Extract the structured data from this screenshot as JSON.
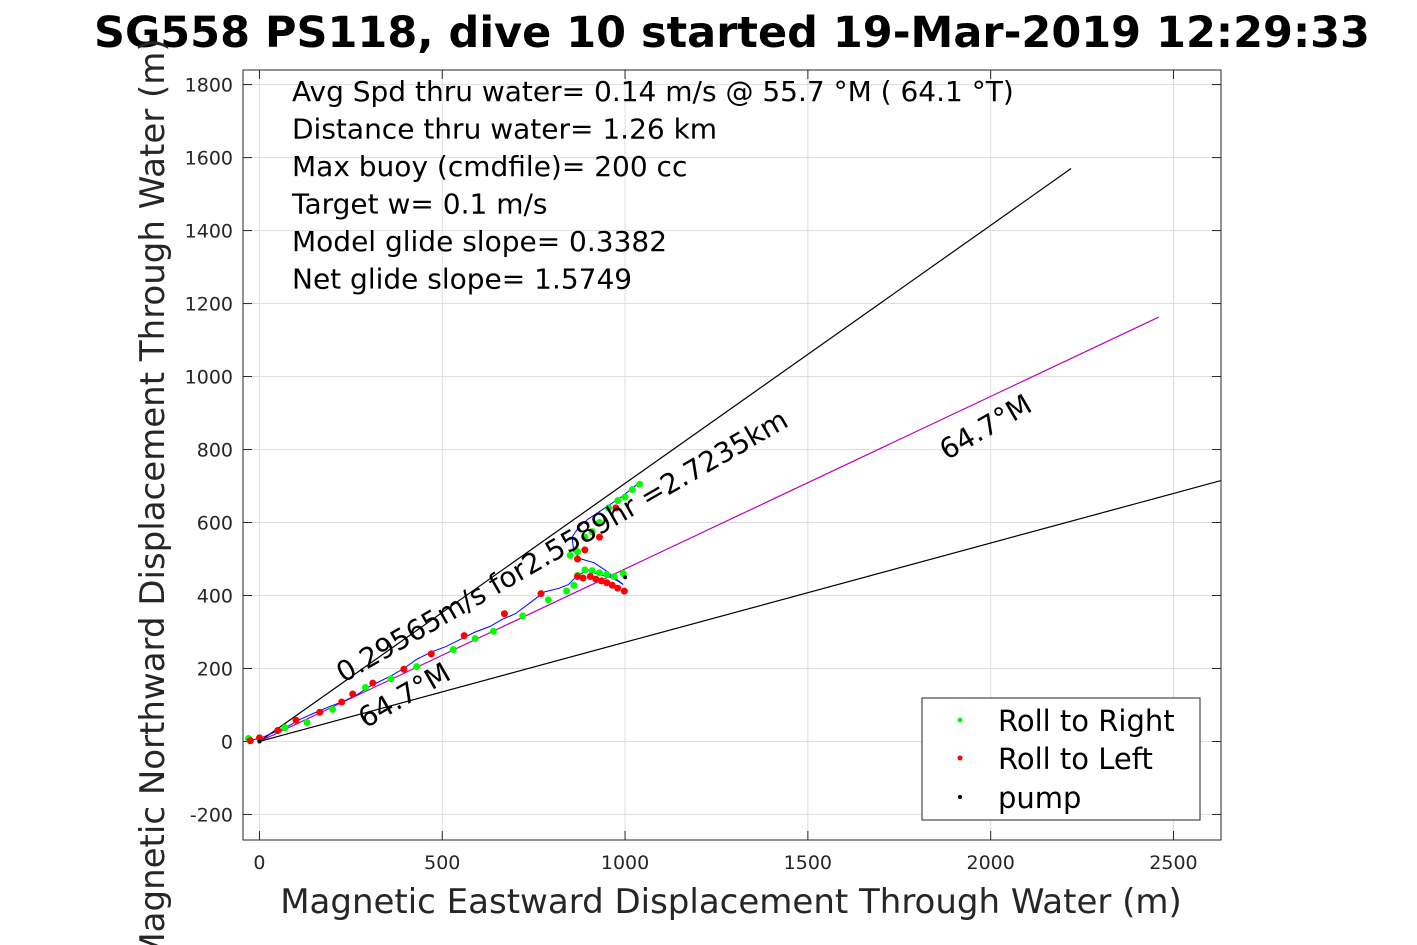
{
  "chart_data": {
    "type": "line",
    "title": "SG558 PS118, dive 10 started 19-Mar-2019 12:29:33",
    "xlabel": "Magnetic Eastward Displacement Through Water (m)",
    "ylabel": "Magnetic Northward Displacement Through Water (m)",
    "xlim": [
      -45,
      2630
    ],
    "ylim": [
      -270,
      1840
    ],
    "xticks": [
      0,
      500,
      1000,
      1500,
      2000,
      2500
    ],
    "yticks": [
      -200,
      0,
      200,
      400,
      600,
      800,
      1000,
      1200,
      1400,
      1600,
      1800
    ],
    "grid": true,
    "stats": [
      "Avg Spd thru water=  0.14 m/s @  55.7 °M ( 64.1 °T)",
      "Distance thru water=  1.26 km",
      "Max buoy (cmdfile)= 200 cc",
      "Target w= 0.1 m/s",
      "Model glide slope= 0.3382",
      "Net glide slope= 1.5749"
    ],
    "annotations": [
      {
        "text": "0.29565m/s for2.5589hr =2.7235km",
        "x": 230,
        "y": 160,
        "angle_deg": 30
      },
      {
        "text": "64.7°M",
        "x": 1880,
        "y": 770,
        "angle_deg": 30
      },
      {
        "text": "64.7°M",
        "x": 290,
        "y": 35,
        "angle_deg": 30
      }
    ],
    "series": [
      {
        "name": "Roll to Right",
        "color": "#00ff00"
      },
      {
        "name": "Roll to Left",
        "color": "#ff0000"
      },
      {
        "name": "pump",
        "color": "#000000"
      }
    ],
    "reference_lines": [
      {
        "color": "#000000",
        "x": [
          0,
          2220
        ],
        "y": [
          0,
          1570
        ]
      },
      {
        "color": "#bf00bf",
        "x": [
          0,
          2460
        ],
        "y": [
          0,
          1163
        ]
      },
      {
        "color": "#000000",
        "x": [
          0,
          2630
        ],
        "y": [
          0,
          715
        ]
      }
    ],
    "track": {
      "color": "#0000ff",
      "x": [
        -35,
        -15,
        10,
        40,
        75,
        110,
        150,
        190,
        230,
        270,
        300,
        330,
        360,
        395,
        430,
        470,
        510,
        550,
        590,
        630,
        665,
        700,
        740,
        780,
        820,
        845,
        860,
        880,
        900,
        920,
        940,
        960,
        980,
        995,
        970,
        945,
        915,
        880,
        860,
        855,
        875,
        900,
        930,
        960,
        990,
        1015,
        1040
      ],
      "y": [
        0,
        5,
        12,
        25,
        40,
        60,
        78,
        95,
        110,
        130,
        150,
        165,
        180,
        200,
        225,
        245,
        260,
        280,
        300,
        315,
        335,
        350,
        380,
        410,
        420,
        430,
        445,
        460,
        470,
        460,
        455,
        450,
        440,
        430,
        450,
        470,
        490,
        500,
        520,
        560,
        590,
        610,
        630,
        650,
        670,
        690,
        710
      ]
    },
    "roll_right": {
      "x": [
        -30,
        70,
        130,
        200,
        290,
        360,
        430,
        530,
        590,
        640,
        720,
        790,
        840,
        860,
        870,
        890,
        910,
        930,
        950,
        970,
        995,
        850,
        870,
        890,
        910,
        930,
        955,
        980,
        1000,
        1020,
        1040
      ],
      "y": [
        8,
        38,
        52,
        88,
        148,
        172,
        205,
        252,
        282,
        302,
        344,
        388,
        412,
        428,
        455,
        470,
        468,
        462,
        458,
        452,
        460,
        510,
        520,
        560,
        575,
        600,
        640,
        660,
        670,
        690,
        705
      ]
    },
    "roll_left": {
      "x": [
        -25,
        0,
        50,
        100,
        165,
        225,
        255,
        310,
        395,
        470,
        560,
        670,
        770,
        870,
        885,
        905,
        920,
        935,
        950,
        965,
        980,
        998,
        870,
        890,
        930,
        975
      ],
      "y": [
        2,
        10,
        30,
        58,
        80,
        108,
        130,
        160,
        198,
        240,
        290,
        350,
        405,
        452,
        448,
        452,
        445,
        440,
        435,
        428,
        420,
        412,
        500,
        525,
        560,
        640
      ]
    },
    "pump": {
      "x": [
        0,
        1000
      ],
      "y": [
        0,
        450
      ]
    },
    "legend": {
      "position": "bottom-right",
      "entries": [
        "Roll to Right",
        "Roll to Left",
        "pump"
      ]
    }
  }
}
